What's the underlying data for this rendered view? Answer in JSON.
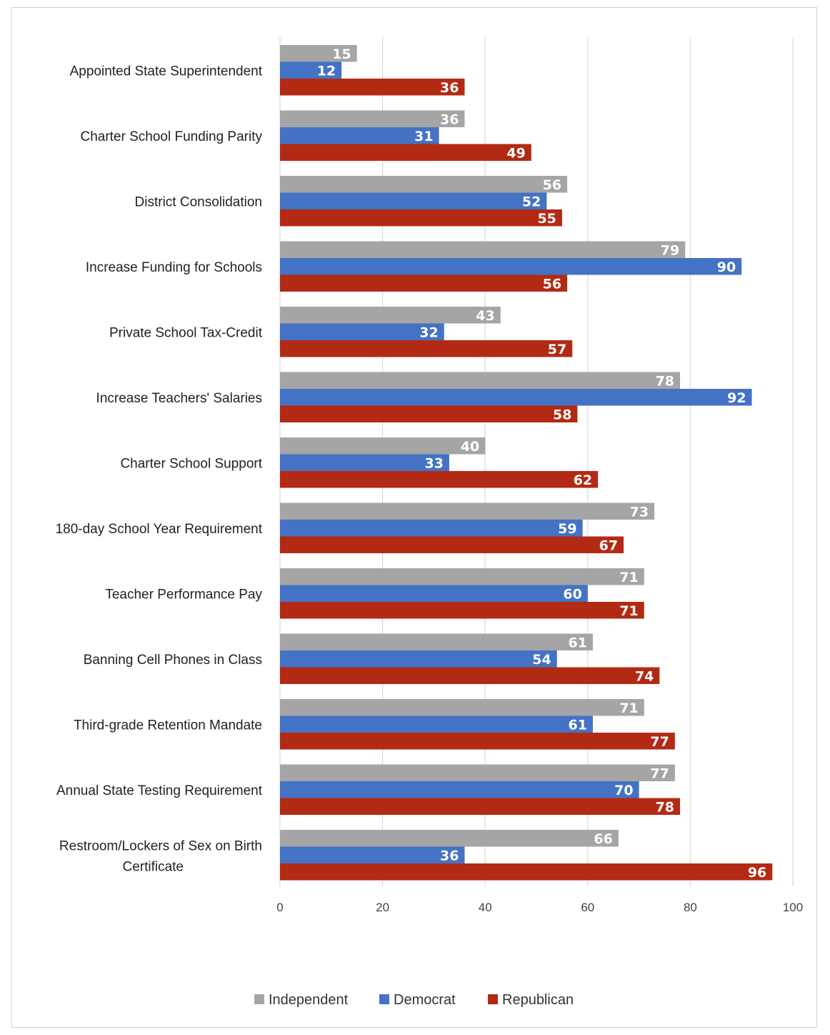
{
  "chart_data": {
    "type": "bar",
    "orientation": "horizontal",
    "categories": [
      "Appointed State Superintendent",
      "Charter School Funding Parity",
      "District Consolidation",
      "Increase Funding for Schools",
      "Private School Tax-Credit",
      "Increase Teachers' Salaries",
      "Charter School Support",
      "180-day School Year Requirement",
      "Teacher Performance Pay",
      "Banning Cell Phones in Class",
      "Third-grade Retention Mandate",
      "Annual State Testing Requirement",
      "Restroom/Lockers of Sex on Birth Certificate"
    ],
    "series": [
      {
        "name": "Independent",
        "color": "#a5a5a5",
        "values": [
          15,
          36,
          56,
          79,
          43,
          78,
          40,
          73,
          71,
          61,
          71,
          77,
          66
        ]
      },
      {
        "name": "Democrat",
        "color": "#4472c4",
        "values": [
          12,
          31,
          52,
          90,
          32,
          92,
          33,
          59,
          60,
          54,
          61,
          70,
          36
        ]
      },
      {
        "name": "Republican",
        "color": "#b22a14",
        "values": [
          36,
          49,
          55,
          56,
          57,
          58,
          62,
          67,
          71,
          74,
          77,
          78,
          96
        ]
      }
    ],
    "xlim": [
      0,
      100
    ],
    "xticks": [
      "0",
      "20",
      "40",
      "60",
      "80",
      "100"
    ],
    "grid": true,
    "legend_position": "bottom",
    "data_labels": true,
    "title": "",
    "xlabel": "",
    "ylabel": ""
  }
}
